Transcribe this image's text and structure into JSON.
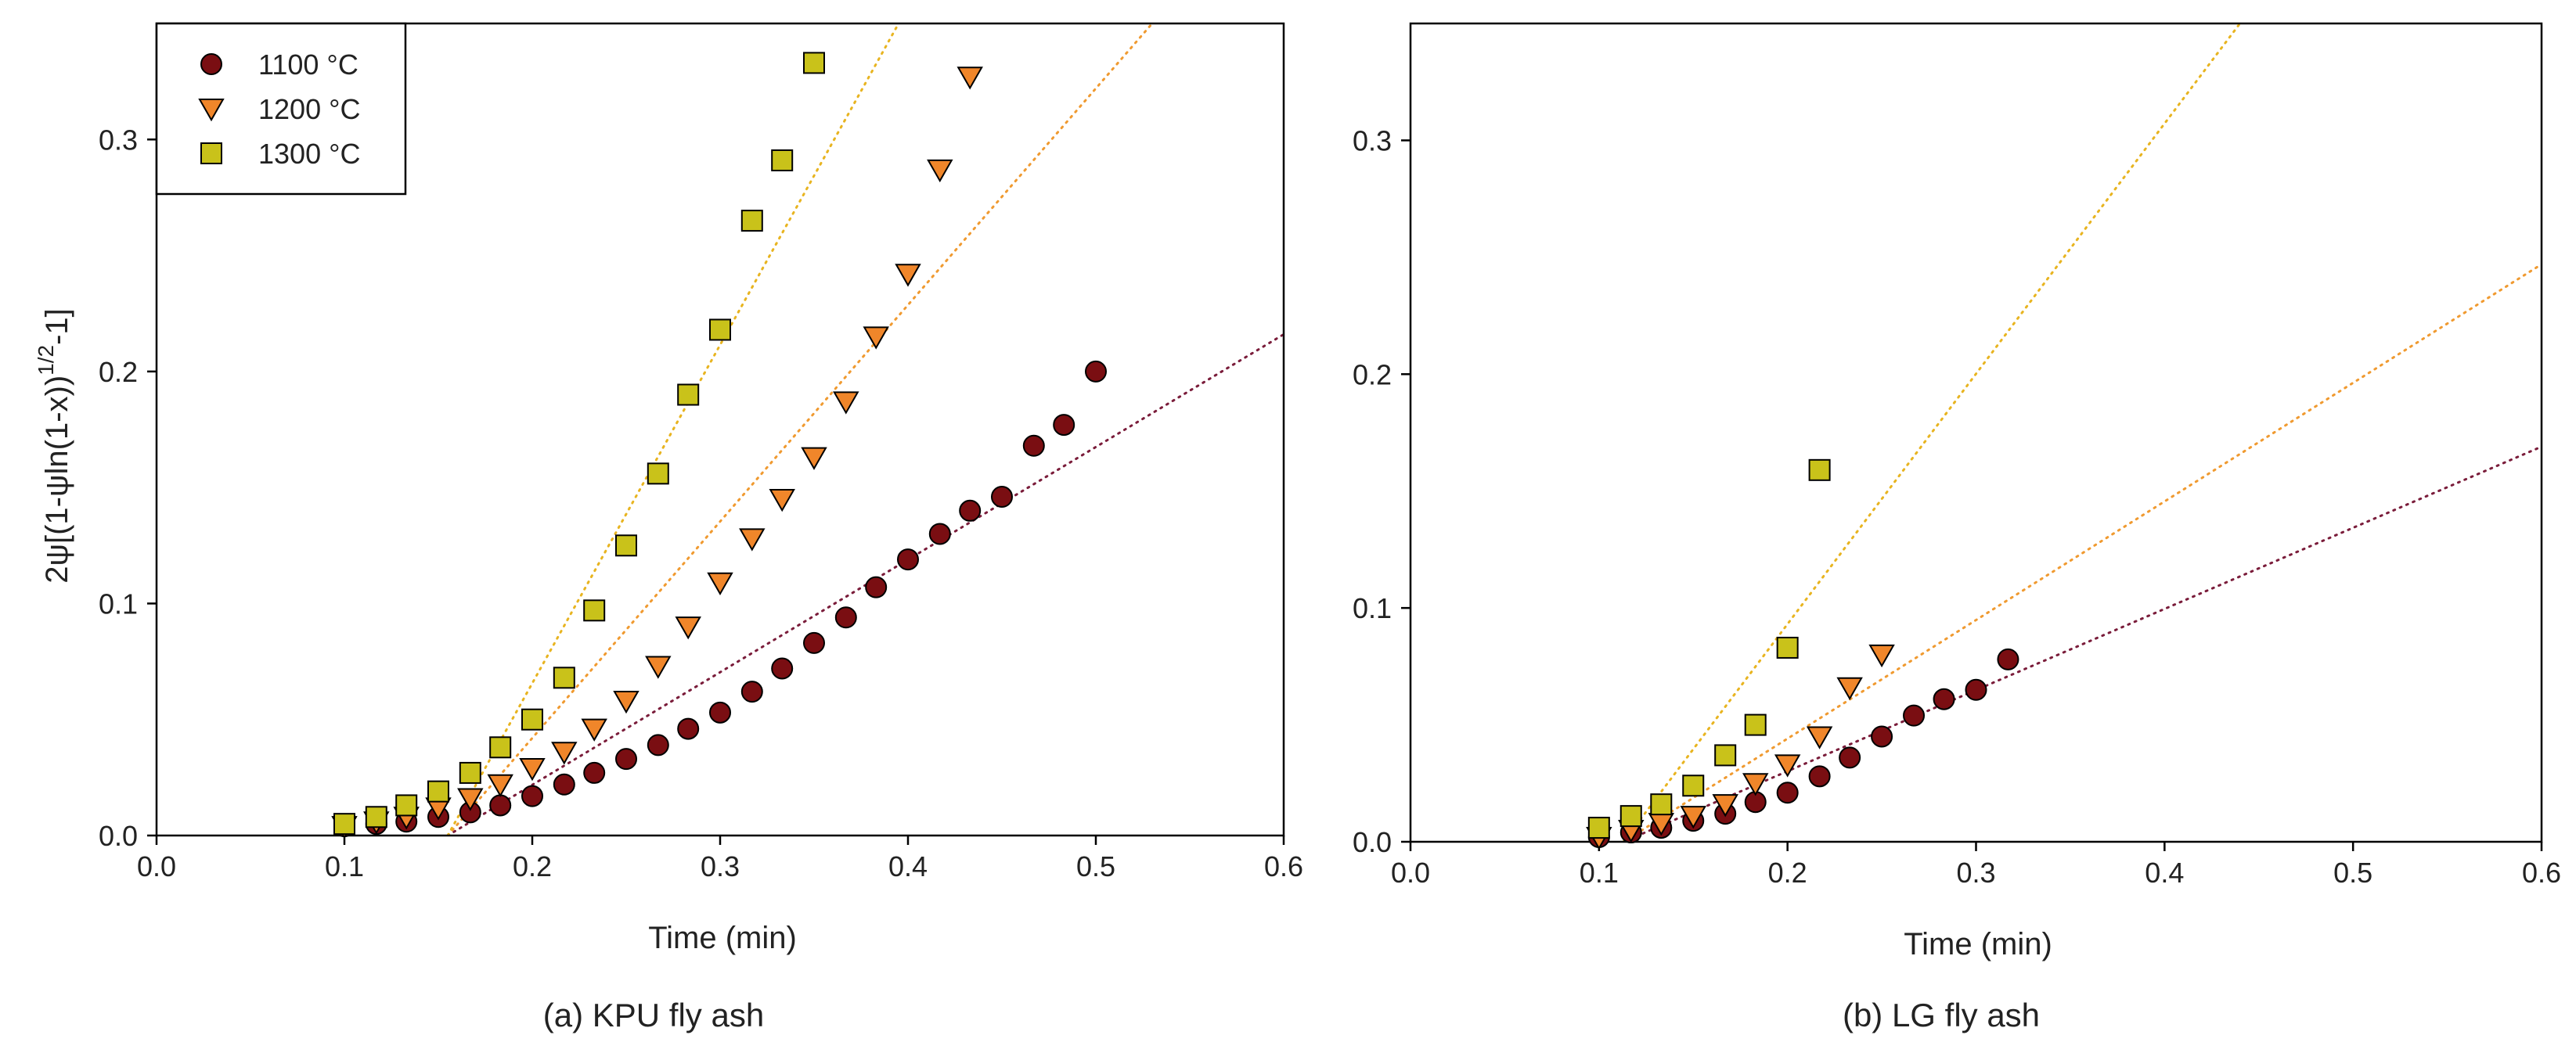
{
  "colors": {
    "c1100": "#7a0e12",
    "c1200": "#f0862a",
    "c1300": "#c9c21a",
    "fit1100": "#7a1c3a",
    "fit1200": "#f09a30",
    "fit1300": "#e8b420"
  },
  "legend": {
    "items": [
      {
        "marker": "circle",
        "label": "1100 °C",
        "color": "#7a0e12"
      },
      {
        "marker": "triangle-down",
        "label": "1200 °C",
        "color": "#f0862a"
      },
      {
        "marker": "square",
        "label": "1300 °C",
        "color": "#c9c21a"
      }
    ]
  },
  "chart_data": [
    {
      "type": "scatter",
      "title": "(a) KPU fly ash",
      "caption": "(a) KPU fly ash",
      "xlabel": "Time (min)",
      "ylabel": "2ψ[(1-ψln(1-x))1/2-1]",
      "xlim": [
        0.0,
        0.6
      ],
      "ylim": [
        0.0,
        0.35
      ],
      "xticks": [
        "0.0",
        "0.1",
        "0.2",
        "0.3",
        "0.4",
        "0.5",
        "0.6"
      ],
      "yticks": [
        "0.0",
        "0.1",
        "0.2",
        "0.3"
      ],
      "legend": true,
      "series": [
        {
          "name": "1100 °C",
          "marker": "circle",
          "color": "#7a0e12",
          "x": [
            0.1,
            0.117,
            0.133,
            0.15,
            0.167,
            0.183,
            0.2,
            0.217,
            0.233,
            0.25,
            0.267,
            0.283,
            0.3,
            0.317,
            0.333,
            0.35,
            0.367,
            0.383,
            0.4,
            0.417,
            0.433,
            0.45,
            0.467,
            0.483,
            0.5
          ],
          "y": [
            0.004,
            0.005,
            0.006,
            0.008,
            0.01,
            0.013,
            0.017,
            0.022,
            0.027,
            0.033,
            0.039,
            0.046,
            0.053,
            0.062,
            0.072,
            0.083,
            0.094,
            0.107,
            0.119,
            0.13,
            0.14,
            0.146,
            0.168,
            0.177,
            0.2
          ]
        },
        {
          "name": "1200 °C",
          "marker": "triangle-down",
          "color": "#f0862a",
          "x": [
            0.1,
            0.117,
            0.133,
            0.15,
            0.167,
            0.183,
            0.2,
            0.217,
            0.233,
            0.25,
            0.267,
            0.283,
            0.3,
            0.317,
            0.333,
            0.35,
            0.367,
            0.383,
            0.4,
            0.417,
            0.433
          ],
          "y": [
            0.004,
            0.006,
            0.008,
            0.012,
            0.016,
            0.022,
            0.029,
            0.036,
            0.046,
            0.058,
            0.073,
            0.09,
            0.109,
            0.128,
            0.145,
            0.163,
            0.187,
            0.215,
            0.242,
            0.287,
            0.327
          ]
        },
        {
          "name": "1300 °C",
          "marker": "square",
          "color": "#c9c21a",
          "x": [
            0.1,
            0.117,
            0.133,
            0.15,
            0.167,
            0.183,
            0.2,
            0.217,
            0.233,
            0.25,
            0.267,
            0.283,
            0.3,
            0.317,
            0.333,
            0.35
          ],
          "y": [
            0.005,
            0.008,
            0.013,
            0.019,
            0.027,
            0.038,
            0.05,
            0.068,
            0.097,
            0.125,
            0.156,
            0.19,
            0.218,
            0.265,
            0.291,
            0.333
          ]
        }
      ],
      "fit_lines": [
        {
          "name": "1100 °C fit",
          "color": "#7a1c3a",
          "x": [
            0.155,
            0.6
          ],
          "y": [
            0.0,
            0.216
          ]
        },
        {
          "name": "1200 °C fit",
          "color": "#f09a30",
          "x": [
            0.155,
            0.53
          ],
          "y": [
            0.0,
            0.35
          ]
        },
        {
          "name": "1300 °C fit",
          "color": "#e8b420",
          "x": [
            0.155,
            0.395
          ],
          "y": [
            0.0,
            0.35
          ]
        }
      ]
    },
    {
      "type": "scatter",
      "title": "(b) LG fly ash",
      "caption": "(b) LG fly ash",
      "xlabel": "Time (min)",
      "ylabel": "",
      "xlim": [
        0.0,
        0.6
      ],
      "ylim": [
        0.0,
        0.35
      ],
      "xticks": [
        "0.0",
        "0.1",
        "0.2",
        "0.3",
        "0.4",
        "0.5",
        "0.6"
      ],
      "yticks": [
        "0.0",
        "0.1",
        "0.2",
        "0.3"
      ],
      "legend": false,
      "series": [
        {
          "name": "1100 °C",
          "marker": "circle",
          "color": "#7a0e12",
          "x": [
            0.1,
            0.117,
            0.133,
            0.15,
            0.167,
            0.183,
            0.2,
            0.217,
            0.233,
            0.25,
            0.267,
            0.283,
            0.3,
            0.317
          ],
          "y": [
            0.002,
            0.004,
            0.006,
            0.009,
            0.012,
            0.017,
            0.021,
            0.028,
            0.036,
            0.045,
            0.054,
            0.061,
            0.065,
            0.078
          ]
        },
        {
          "name": "1200 °C",
          "marker": "triangle-down",
          "color": "#f0862a",
          "x": [
            0.1,
            0.117,
            0.133,
            0.15,
            0.167,
            0.183,
            0.2,
            0.217,
            0.233,
            0.25
          ],
          "y": [
            0.002,
            0.005,
            0.008,
            0.011,
            0.016,
            0.025,
            0.033,
            0.045,
            0.066,
            0.08
          ]
        },
        {
          "name": "1300 °C",
          "marker": "square",
          "color": "#c9c21a",
          "x": [
            0.1,
            0.117,
            0.133,
            0.15,
            0.167,
            0.183,
            0.2,
            0.217
          ],
          "y": [
            0.006,
            0.011,
            0.016,
            0.024,
            0.037,
            0.05,
            0.083,
            0.159
          ]
        }
      ],
      "fit_lines": [
        {
          "name": "1100 °C fit",
          "color": "#7a1c3a",
          "x": [
            0.113,
            0.6
          ],
          "y": [
            0.0,
            0.169
          ]
        },
        {
          "name": "1200 °C fit",
          "color": "#f09a30",
          "x": [
            0.113,
            0.6
          ],
          "y": [
            0.0,
            0.247
          ]
        },
        {
          "name": "1300 °C fit",
          "color": "#e8b420",
          "x": [
            0.113,
            0.44
          ],
          "y": [
            0.0,
            0.35
          ]
        }
      ]
    }
  ]
}
